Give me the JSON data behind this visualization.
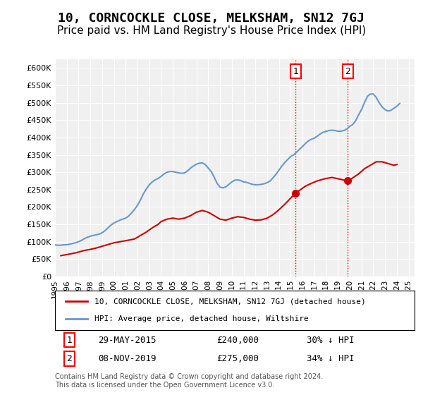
{
  "title": "10, CORNCOCKLE CLOSE, MELKSHAM, SN12 7GJ",
  "subtitle": "Price paid vs. HM Land Registry's House Price Index (HPI)",
  "title_fontsize": 13,
  "subtitle_fontsize": 11,
  "ylim": [
    0,
    625000
  ],
  "yticks": [
    0,
    50000,
    100000,
    150000,
    200000,
    250000,
    300000,
    350000,
    400000,
    450000,
    500000,
    550000,
    600000
  ],
  "ytick_labels": [
    "£0",
    "£50K",
    "£100K",
    "£150K",
    "£200K",
    "£250K",
    "£300K",
    "£350K",
    "£400K",
    "£450K",
    "£500K",
    "£550K",
    "£600K"
  ],
  "background_color": "#ffffff",
  "plot_bg_color": "#f0f0f0",
  "grid_color": "#ffffff",
  "hpi_color": "#6699cc",
  "price_color": "#cc0000",
  "transaction1_date": 2015.41,
  "transaction1_price": 240000,
  "transaction1_label": "1",
  "transaction2_date": 2019.84,
  "transaction2_price": 275000,
  "transaction2_label": "2",
  "legend_label_price": "10, CORNCOCKLE CLOSE, MELKSHAM, SN12 7GJ (detached house)",
  "legend_label_hpi": "HPI: Average price, detached house, Wiltshire",
  "annotation1_text": "29-MAY-2015      £240,000      30% ↓ HPI",
  "annotation2_text": "08-NOV-2019      £275,000      34% ↓ HPI",
  "footer_text": "Contains HM Land Registry data © Crown copyright and database right 2024.\nThis data is licensed under the Open Government Licence v3.0.",
  "hpi_data": {
    "years": [
      1995.0,
      1995.25,
      1995.5,
      1995.75,
      1996.0,
      1996.25,
      1996.5,
      1996.75,
      1997.0,
      1997.25,
      1997.5,
      1997.75,
      1998.0,
      1998.25,
      1998.5,
      1998.75,
      1999.0,
      1999.25,
      1999.5,
      1999.75,
      2000.0,
      2000.25,
      2000.5,
      2000.75,
      2001.0,
      2001.25,
      2001.5,
      2001.75,
      2002.0,
      2002.25,
      2002.5,
      2002.75,
      2003.0,
      2003.25,
      2003.5,
      2003.75,
      2004.0,
      2004.25,
      2004.5,
      2004.75,
      2005.0,
      2005.25,
      2005.5,
      2005.75,
      2006.0,
      2006.25,
      2006.5,
      2006.75,
      2007.0,
      2007.25,
      2007.5,
      2007.75,
      2008.0,
      2008.25,
      2008.5,
      2008.75,
      2009.0,
      2009.25,
      2009.5,
      2009.75,
      2010.0,
      2010.25,
      2010.5,
      2010.75,
      2011.0,
      2011.25,
      2011.5,
      2011.75,
      2012.0,
      2012.25,
      2012.5,
      2012.75,
      2013.0,
      2013.25,
      2013.5,
      2013.75,
      2014.0,
      2014.25,
      2014.5,
      2014.75,
      2015.0,
      2015.25,
      2015.5,
      2015.75,
      2016.0,
      2016.25,
      2016.5,
      2016.75,
      2017.0,
      2017.25,
      2017.5,
      2017.75,
      2018.0,
      2018.25,
      2018.5,
      2018.75,
      2019.0,
      2019.25,
      2019.5,
      2019.75,
      2020.0,
      2020.25,
      2020.5,
      2020.75,
      2021.0,
      2021.25,
      2021.5,
      2021.75,
      2022.0,
      2022.25,
      2022.5,
      2022.75,
      2023.0,
      2023.25,
      2023.5,
      2023.75,
      2024.0,
      2024.25
    ],
    "values": [
      91000,
      90000,
      90000,
      91000,
      91500,
      93000,
      95000,
      97000,
      100000,
      104000,
      109000,
      113000,
      116000,
      118000,
      120000,
      122000,
      126000,
      132000,
      140000,
      148000,
      154000,
      158000,
      162000,
      165000,
      168000,
      174000,
      183000,
      193000,
      205000,
      220000,
      238000,
      252000,
      264000,
      272000,
      278000,
      282000,
      288000,
      295000,
      300000,
      302000,
      302000,
      300000,
      298000,
      297000,
      298000,
      304000,
      312000,
      318000,
      323000,
      326000,
      327000,
      322000,
      312000,
      302000,
      286000,
      268000,
      257000,
      255000,
      258000,
      265000,
      272000,
      277000,
      278000,
      276000,
      272000,
      271000,
      268000,
      265000,
      264000,
      264000,
      265000,
      267000,
      270000,
      275000,
      284000,
      294000,
      306000,
      318000,
      328000,
      337000,
      345000,
      350000,
      358000,
      366000,
      374000,
      383000,
      390000,
      395000,
      398000,
      404000,
      410000,
      415000,
      418000,
      420000,
      421000,
      420000,
      418000,
      418000,
      420000,
      424000,
      432000,
      437000,
      448000,
      465000,
      480000,
      500000,
      518000,
      525000,
      525000,
      515000,
      500000,
      488000,
      480000,
      476000,
      478000,
      484000,
      490000,
      498000
    ]
  },
  "price_data": {
    "years": [
      1995.5,
      1996.0,
      1996.75,
      1997.5,
      1998.0,
      1998.5,
      1999.0,
      1999.5,
      2000.0,
      2000.5,
      2001.0,
      2001.75,
      2002.25,
      2002.75,
      2003.25,
      2003.75,
      2004.0,
      2004.5,
      2005.0,
      2005.5,
      2006.0,
      2006.5,
      2007.0,
      2007.5,
      2008.0,
      2008.5,
      2009.0,
      2009.5,
      2010.0,
      2010.5,
      2011.0,
      2011.5,
      2012.0,
      2012.5,
      2013.0,
      2013.5,
      2014.0,
      2014.5,
      2015.41,
      2015.75,
      2016.25,
      2016.75,
      2017.25,
      2017.75,
      2018.0,
      2018.5,
      2019.84,
      2020.0,
      2020.75,
      2021.25,
      2021.75,
      2022.25,
      2022.75,
      2023.25,
      2023.75,
      2024.0
    ],
    "values": [
      60000,
      63000,
      68000,
      75000,
      78000,
      82000,
      87000,
      92000,
      97000,
      100000,
      103000,
      108000,
      118000,
      128000,
      140000,
      150000,
      158000,
      165000,
      168000,
      165000,
      168000,
      175000,
      185000,
      190000,
      185000,
      175000,
      165000,
      162000,
      168000,
      172000,
      170000,
      165000,
      162000,
      163000,
      168000,
      178000,
      192000,
      208000,
      240000,
      248000,
      260000,
      268000,
      275000,
      280000,
      282000,
      285000,
      275000,
      278000,
      295000,
      310000,
      320000,
      330000,
      330000,
      325000,
      320000,
      322000
    ]
  }
}
